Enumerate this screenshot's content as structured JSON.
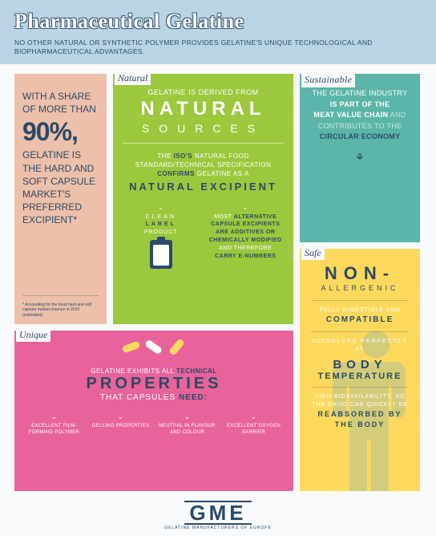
{
  "header": {
    "title": "Pharmaceutical Gelatine",
    "subtitle": "NO OTHER NATURAL OR SYNTHETIC POLYMER PROVIDES GELATINE'S UNIQUE TECHNOLOGICAL AND BIOPHARMACEUTICAL ADVANTAGES."
  },
  "colors": {
    "header_bg": "#b9d4e4",
    "share_bg": "#edc0ab",
    "natural_bg": "#9cc83d",
    "sustainable_bg": "#5bb5a9",
    "safe_bg": "#fcd95d",
    "unique_bg": "#e8639b",
    "navy": "#2a4a66"
  },
  "share": {
    "pre": "WITH A SHARE OF MORE THAN",
    "pct": "90%,",
    "post": "GELATINE IS THE HARD AND SOFT CAPSULE MARKET'S PREFERRED EXCIPIENT*",
    "footnote": "* Accounting for the most hard and soft capsule market revenue in 2019 (estimated)."
  },
  "natural": {
    "label": "Natural",
    "line1": "GELATINE IS DERIVED FROM",
    "big": "NATURAL",
    "sources": "SOURCES",
    "mid_pre": "THE",
    "mid_iso": "ISO'S",
    "mid_rest": "NATURAL FOOD STANDARD/TECHNICAL SPECIFICATION",
    "confirms": "CONFIRMS",
    "gel_as": "GELATINE AS A",
    "nat_exc": "NATURAL   EXCIPIENT",
    "col1_l1": "CLEAN",
    "col1_l2": "LABEL",
    "col1_l3": "PRODUCT",
    "col2": "MOST ALTERNATIVE CAPSULE EXCIPIENTS ARE ADDITIVES OR CHEMICALLY MODIFIED AND THEREFORE CARRY E-NUMBERS",
    "col2_html": "MOST <b>ALTERNATIVE CAPSULE EXCIPIENTS ARE ADDITIVES OR CHEMICALLY MODIFIED</b> AND THEREFORE <b>CARRY E-NUMBERS</b>"
  },
  "sustainable": {
    "label": "Sustainable",
    "line1": "THE GELATINE INDUSTRY",
    "line2": "IS PART OF THE",
    "line3": "MEAT VALUE CHAIN",
    "line4": "AND CONTRIBUTES TO THE",
    "line5": "CIRCULAR ECONOMY"
  },
  "safe": {
    "label": "Safe",
    "big": "NON-",
    "sub": "ALLERGENIC",
    "l1a": "FULLY DIGESTIBLE AND",
    "l1b": "COMPATIBLE",
    "l2a": "DISSOLVES PERFECTLY AT",
    "l2b1": "BODY",
    "l2b2": "TEMPERATURE",
    "l3a": "HIGH BIOAVAILABILITY, SO THE DRUG CAN QUICKLY BE",
    "l3b": "REABSORBED BY THE BODY"
  },
  "unique": {
    "label": "Unique",
    "top_pre": "GELATINE EXHIBITS ALL",
    "top_b": "TECHNICAL",
    "big": "PROPERTIES",
    "need_pre": "THAT CAPSULES",
    "need_b": "NEED:",
    "items": [
      "EXCELLENT FILM-FORMING POLYMER",
      "GELLING PROPERTIES",
      "NEUTRAL IN FLAVOUR AND COLOUR",
      "EXCELLENT OXYGEN BARRIER"
    ],
    "pill_colors": [
      "#fcd95d",
      "#fff",
      "#fcd95d"
    ]
  },
  "footer": {
    "logo": "GME",
    "sub": "GELATINE MANUFACTURERS OF EUROPE"
  }
}
